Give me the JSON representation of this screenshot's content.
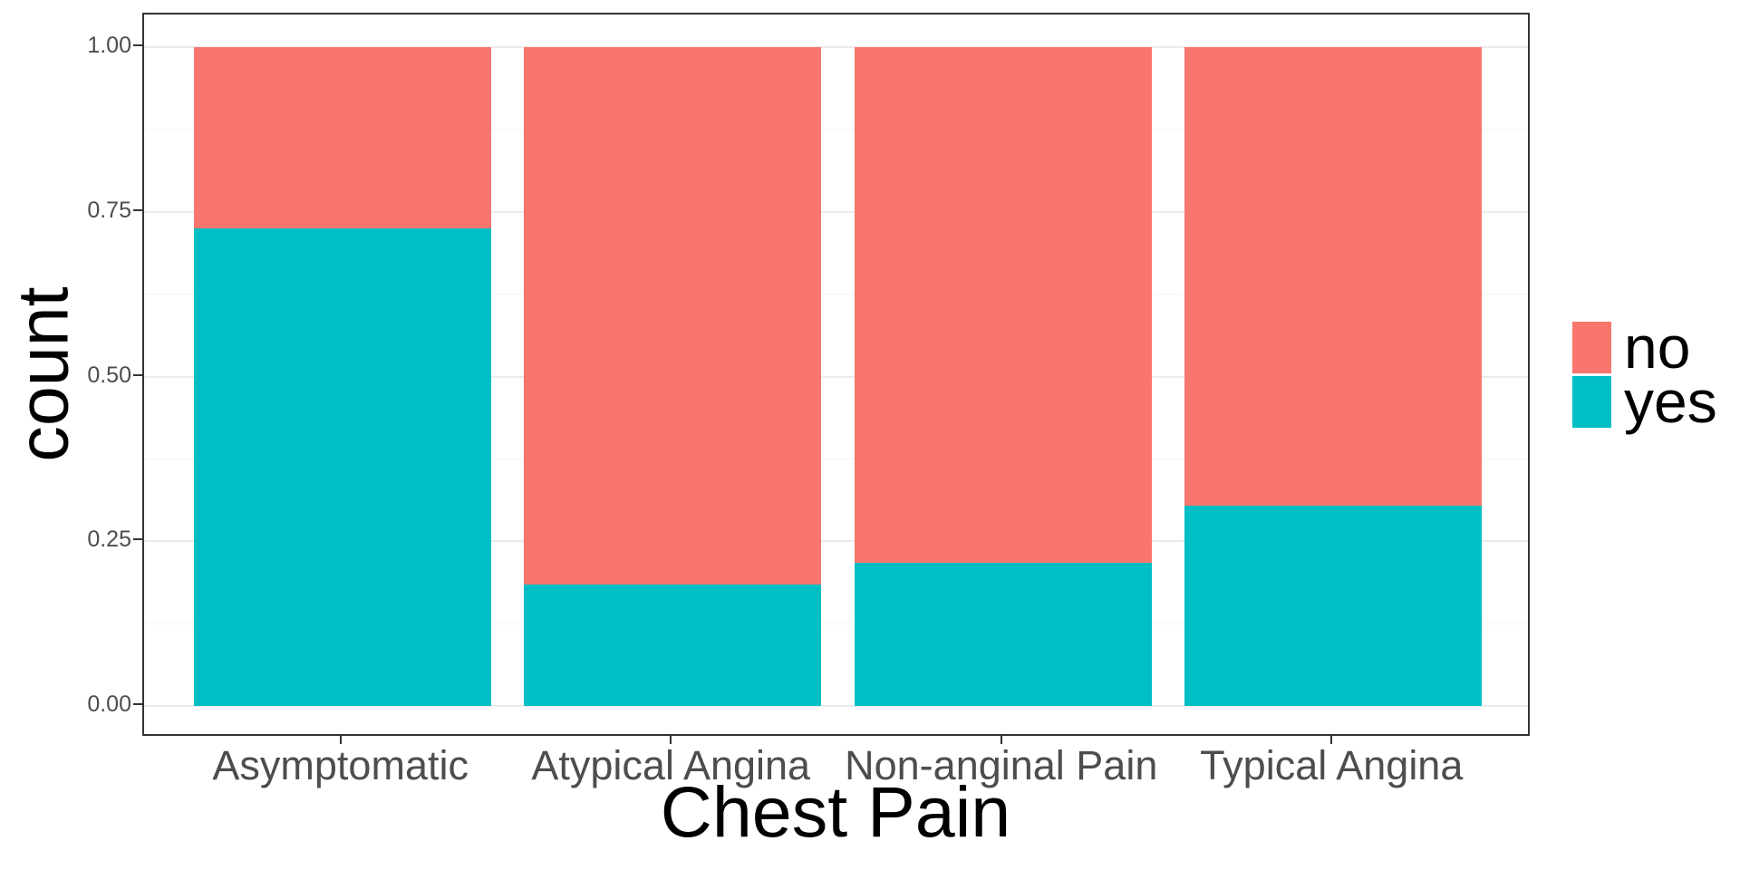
{
  "chart_data": {
    "type": "bar",
    "subtype": "stacked_proportion_bar",
    "title": "",
    "xlabel": "Chest Pain",
    "ylabel": "count",
    "categories": [
      "Asymptomatic",
      "Atypical Angina",
      "Non-anginal Pain",
      "Typical Angina"
    ],
    "series": [
      {
        "name": "no",
        "color": "#F8766D",
        "values": [
          0.275,
          0.816,
          0.782,
          0.696
        ]
      },
      {
        "name": "yes",
        "color": "#00BFC4",
        "values": [
          0.725,
          0.184,
          0.218,
          0.304
        ]
      }
    ],
    "stack_order_top_to_bottom": [
      "no",
      "yes"
    ],
    "ylim": [
      0,
      1
    ],
    "y_ticks": {
      "values": [
        0,
        0.25,
        0.5,
        0.75,
        1
      ],
      "labels": [
        "0.00",
        "0.25",
        "0.50",
        "0.75",
        "1.00"
      ]
    },
    "y_minor_gridlines": [
      0.125,
      0.375,
      0.625,
      0.875
    ],
    "grid": "on",
    "legend_position": "right"
  },
  "colors": {
    "background": "#ffffff",
    "panel_border": "#333333",
    "tick_mark": "#333333",
    "axis_text": "#4d4d4d",
    "title_text": "#000000",
    "gridline_major": "#ebebeb",
    "gridline_minor": "#f5f5f5"
  }
}
